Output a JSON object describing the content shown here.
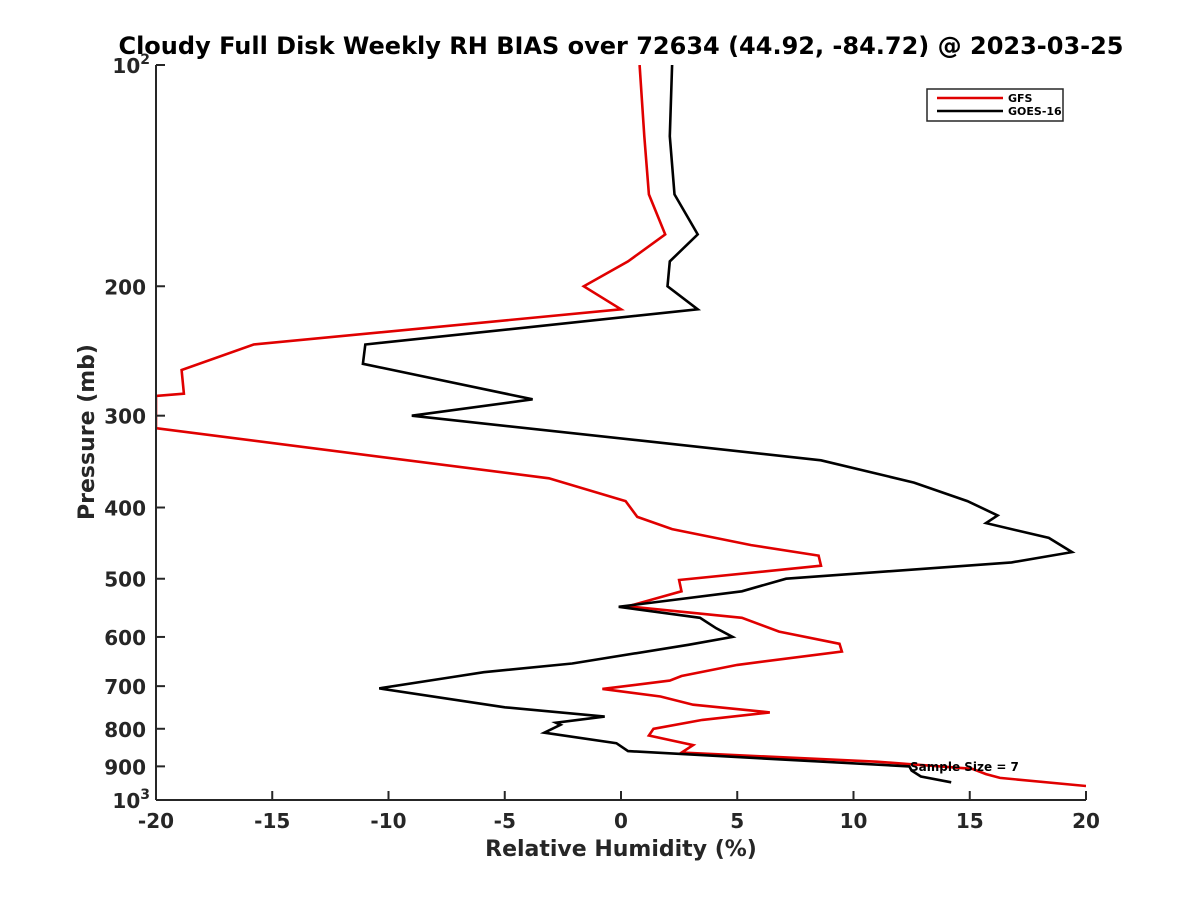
{
  "chart_data": {
    "type": "line",
    "title": "Cloudy Full Disk Weekly RH BIAS over 72634 (44.92, -84.72) @ 2023-03-25",
    "xlabel": "Relative Humidity (%)",
    "ylabel": "Pressure (mb)",
    "xlim": [
      -20,
      20
    ],
    "ylim": [
      100,
      1000
    ],
    "yscale": "log",
    "y_reversed": true,
    "x_ticks": [
      -20,
      -15,
      -10,
      -5,
      0,
      5,
      10,
      15,
      20
    ],
    "x_tick_labels": [
      "-20",
      "-15",
      "-10",
      "-5",
      "0",
      "5",
      "10",
      "15",
      "20"
    ],
    "y_ticks": [
      100,
      200,
      300,
      400,
      500,
      600,
      700,
      800,
      900,
      1000
    ],
    "y_tick_labels": [
      {
        "base": "10",
        "exp": "2"
      },
      {
        "base": "200",
        "exp": ""
      },
      {
        "base": "300",
        "exp": ""
      },
      {
        "base": "400",
        "exp": ""
      },
      {
        "base": "500",
        "exp": ""
      },
      {
        "base": "600",
        "exp": ""
      },
      {
        "base": "700",
        "exp": ""
      },
      {
        "base": "800",
        "exp": ""
      },
      {
        "base": "900",
        "exp": ""
      },
      {
        "base": "10",
        "exp": "3"
      }
    ],
    "grid": false,
    "legend_position": "top-right",
    "annotation": "Sample Size = 7",
    "series": [
      {
        "name": "GFS",
        "color": "#e00000",
        "points": [
          [
            0.8,
            100
          ],
          [
            1.0,
            125
          ],
          [
            1.2,
            150
          ],
          [
            1.9,
            170
          ],
          [
            0.3,
            185
          ],
          [
            -1.6,
            200
          ],
          [
            0.0,
            215
          ],
          [
            -15.8,
            240
          ],
          [
            -18.9,
            260
          ],
          [
            -18.8,
            280
          ],
          [
            -20.0,
            282
          ],
          [
            -20.0,
            312
          ],
          [
            -3.1,
            365
          ],
          [
            0.2,
            392
          ],
          [
            0.7,
            412
          ],
          [
            2.2,
            428
          ],
          [
            5.6,
            450
          ],
          [
            8.5,
            465
          ],
          [
            8.6,
            480
          ],
          [
            2.5,
            502
          ],
          [
            2.6,
            520
          ],
          [
            0.3,
            545
          ],
          [
            5.2,
            565
          ],
          [
            6.8,
            590
          ],
          [
            9.4,
            613
          ],
          [
            9.5,
            628
          ],
          [
            5.0,
            655
          ],
          [
            2.6,
            678
          ],
          [
            2.1,
            688
          ],
          [
            -0.8,
            706
          ],
          [
            1.7,
            723
          ],
          [
            3.1,
            742
          ],
          [
            6.4,
            760
          ],
          [
            3.5,
            778
          ],
          [
            1.4,
            800
          ],
          [
            1.2,
            817
          ],
          [
            3.1,
            842
          ],
          [
            2.6,
            862
          ],
          [
            11.0,
            887
          ],
          [
            15.1,
            907
          ],
          [
            15.7,
            922
          ],
          [
            16.3,
            933
          ],
          [
            20.0,
            957
          ]
        ]
      },
      {
        "name": "GOES-16",
        "color": "#000000",
        "points": [
          [
            2.2,
            100
          ],
          [
            2.1,
            125
          ],
          [
            2.3,
            150
          ],
          [
            3.3,
            170
          ],
          [
            2.1,
            185
          ],
          [
            2.0,
            200
          ],
          [
            3.3,
            215
          ],
          [
            -11.0,
            240
          ],
          [
            -11.1,
            255
          ],
          [
            -3.8,
            285
          ],
          [
            -9.0,
            300
          ],
          [
            1.1,
            325
          ],
          [
            8.6,
            345
          ],
          [
            12.6,
            370
          ],
          [
            14.9,
            392
          ],
          [
            16.2,
            410
          ],
          [
            15.7,
            420
          ],
          [
            18.4,
            440
          ],
          [
            19.4,
            460
          ],
          [
            16.8,
            475
          ],
          [
            7.1,
            500
          ],
          [
            5.2,
            520
          ],
          [
            -0.1,
            546
          ],
          [
            3.4,
            565
          ],
          [
            4.1,
            584
          ],
          [
            4.8,
            600
          ],
          [
            2.9,
            615
          ],
          [
            -2.1,
            652
          ],
          [
            -5.9,
            670
          ],
          [
            -7.2,
            680
          ],
          [
            -10.4,
            705
          ],
          [
            -5.0,
            748
          ],
          [
            -0.7,
            770
          ],
          [
            -2.8,
            785
          ],
          [
            -2.6,
            790
          ],
          [
            -3.3,
            810
          ],
          [
            -0.2,
            837
          ],
          [
            0.3,
            858
          ],
          [
            12.4,
            900
          ],
          [
            12.5,
            912
          ],
          [
            12.9,
            929
          ],
          [
            14.2,
            946
          ]
        ]
      }
    ]
  }
}
